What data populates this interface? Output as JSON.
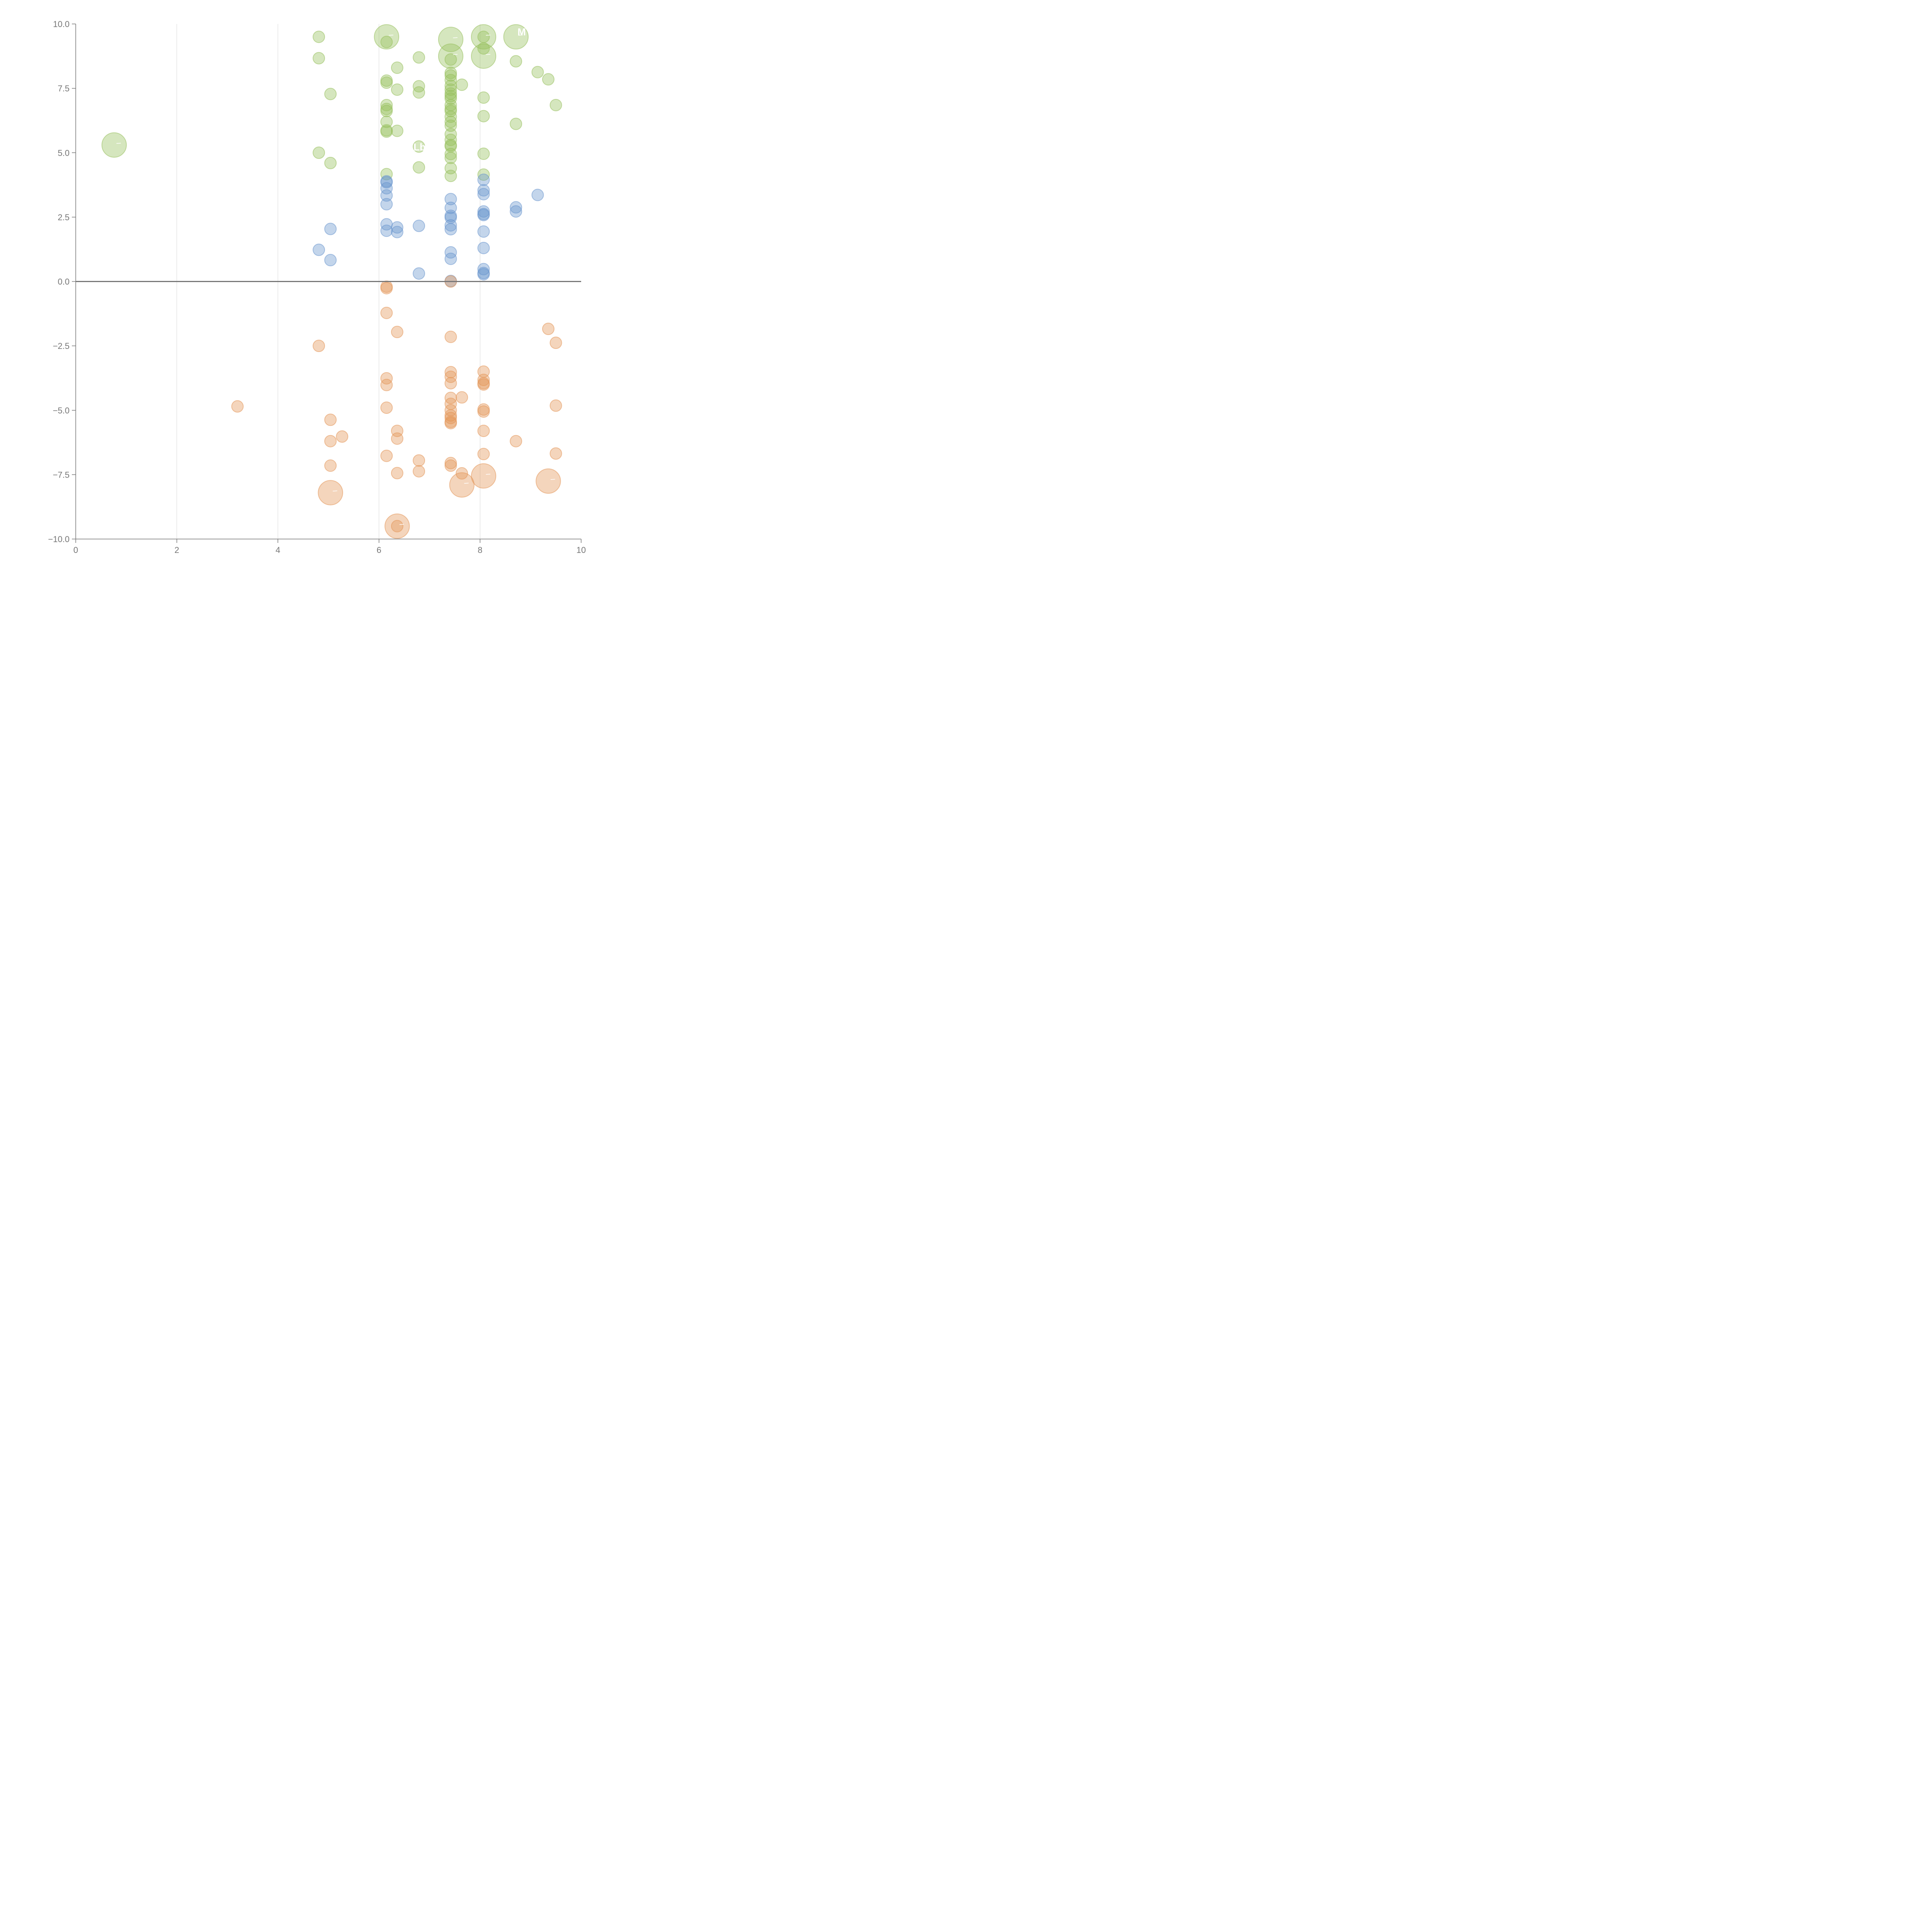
{
  "colors": {
    "positive_high": "#97c05c",
    "positive_low": "#6a95cd",
    "negative": "#e39658",
    "axis": "#777777",
    "grid": "#d9d9d9",
    "label": "#ffffff"
  },
  "chart_data": {
    "type": "scatter",
    "title": "",
    "xlabel": "",
    "ylabel": "",
    "xlim": [
      0,
      10
    ],
    "ylim": [
      -10,
      10
    ],
    "xticks": [
      "0",
      "2",
      "4",
      "6",
      "8",
      "10"
    ],
    "yticks": [
      "10.0",
      "7.5",
      "5.0",
      "2.5",
      "0.0",
      "−2.5",
      "−5.0",
      "−7.5",
      "−10.0"
    ],
    "grid": "vertical",
    "reference_line": 0,
    "series": [
      {
        "name": "green",
        "color": "#97c05c",
        "points": [
          [
            4.81,
            9.5
          ],
          [
            4.81,
            8.67
          ],
          [
            5.04,
            7.28
          ],
          [
            4.81,
            5.0
          ],
          [
            5.04,
            4.6
          ],
          [
            6.15,
            9.3
          ],
          [
            6.15,
            7.8
          ],
          [
            6.15,
            7.72
          ],
          [
            6.15,
            6.85
          ],
          [
            6.15,
            6.7
          ],
          [
            6.15,
            6.62
          ],
          [
            6.15,
            6.2
          ],
          [
            6.15,
            5.87
          ],
          [
            6.15,
            5.82
          ],
          [
            6.15,
            4.17
          ],
          [
            6.36,
            8.3
          ],
          [
            6.36,
            7.45
          ],
          [
            6.36,
            5.85
          ],
          [
            6.79,
            8.7
          ],
          [
            6.79,
            7.58
          ],
          [
            6.79,
            7.34
          ],
          [
            6.79,
            5.24
          ],
          [
            6.79,
            4.43
          ],
          [
            7.42,
            8.62
          ],
          [
            7.42,
            8.1
          ],
          [
            7.42,
            8.0
          ],
          [
            7.42,
            7.82
          ],
          [
            7.42,
            7.6
          ],
          [
            7.42,
            7.45
          ],
          [
            7.42,
            7.3
          ],
          [
            7.42,
            7.2
          ],
          [
            7.42,
            7.1
          ],
          [
            7.42,
            6.85
          ],
          [
            7.42,
            6.7
          ],
          [
            7.42,
            6.62
          ],
          [
            7.42,
            6.4
          ],
          [
            7.42,
            6.2
          ],
          [
            7.42,
            6.05
          ],
          [
            7.42,
            5.72
          ],
          [
            7.42,
            5.5
          ],
          [
            7.42,
            5.3
          ],
          [
            7.42,
            5.25
          ],
          [
            7.42,
            4.95
          ],
          [
            7.42,
            4.8
          ],
          [
            7.42,
            4.4
          ],
          [
            7.42,
            4.1
          ],
          [
            7.64,
            7.64
          ],
          [
            8.07,
            9.5
          ],
          [
            8.07,
            9.05
          ],
          [
            8.07,
            7.14
          ],
          [
            8.07,
            6.42
          ],
          [
            8.07,
            4.96
          ],
          [
            8.07,
            4.15
          ],
          [
            8.71,
            8.55
          ],
          [
            8.71,
            6.12
          ],
          [
            9.14,
            8.13
          ],
          [
            9.35,
            7.85
          ],
          [
            9.5,
            6.85
          ]
        ]
      },
      {
        "name": "blue",
        "color": "#6a95cd",
        "points": [
          [
            4.81,
            1.23
          ],
          [
            5.04,
            2.04
          ],
          [
            5.04,
            0.83
          ],
          [
            6.15,
            3.89
          ],
          [
            6.15,
            3.85
          ],
          [
            6.15,
            3.62
          ],
          [
            6.15,
            3.34
          ],
          [
            6.15,
            3.0
          ],
          [
            6.15,
            2.22
          ],
          [
            6.15,
            1.97
          ],
          [
            6.36,
            2.1
          ],
          [
            6.36,
            1.92
          ],
          [
            6.79,
            2.16
          ],
          [
            6.79,
            0.31
          ],
          [
            7.42,
            3.2
          ],
          [
            7.42,
            2.86
          ],
          [
            7.42,
            2.55
          ],
          [
            7.42,
            2.48
          ],
          [
            7.42,
            2.18
          ],
          [
            7.42,
            2.03
          ],
          [
            7.42,
            1.13
          ],
          [
            7.42,
            0.88
          ],
          [
            7.42,
            0.02
          ],
          [
            8.07,
            3.95
          ],
          [
            8.07,
            3.54
          ],
          [
            8.07,
            3.39
          ],
          [
            8.07,
            2.72
          ],
          [
            8.07,
            2.62
          ],
          [
            8.07,
            2.58
          ],
          [
            8.07,
            1.94
          ],
          [
            8.07,
            1.3
          ],
          [
            8.07,
            0.48
          ],
          [
            8.07,
            0.33
          ],
          [
            8.07,
            0.28
          ],
          [
            8.71,
            2.88
          ],
          [
            8.71,
            2.72
          ],
          [
            9.14,
            3.36
          ]
        ]
      },
      {
        "name": "orange",
        "color": "#e39658",
        "points": [
          [
            3.2,
            -4.85
          ],
          [
            4.81,
            -2.5
          ],
          [
            5.04,
            -5.37
          ],
          [
            5.04,
            -6.2
          ],
          [
            5.04,
            -7.15
          ],
          [
            5.27,
            -6.02
          ],
          [
            6.15,
            -0.2
          ],
          [
            6.15,
            -0.26
          ],
          [
            6.15,
            -1.22
          ],
          [
            6.15,
            -3.76
          ],
          [
            6.15,
            -4.02
          ],
          [
            6.15,
            -4.9
          ],
          [
            6.15,
            -6.77
          ],
          [
            6.36,
            -1.96
          ],
          [
            6.36,
            -5.8
          ],
          [
            6.36,
            -6.1
          ],
          [
            6.36,
            -7.44
          ],
          [
            6.36,
            -9.5
          ],
          [
            6.79,
            -6.95
          ],
          [
            6.79,
            -7.37
          ],
          [
            7.42,
            0.0
          ],
          [
            7.42,
            -2.15
          ],
          [
            7.42,
            -3.52
          ],
          [
            7.42,
            -3.7
          ],
          [
            7.42,
            -3.95
          ],
          [
            7.42,
            -4.52
          ],
          [
            7.42,
            -4.75
          ],
          [
            7.42,
            -5.0
          ],
          [
            7.42,
            -5.2
          ],
          [
            7.42,
            -5.3
          ],
          [
            7.42,
            -5.45
          ],
          [
            7.42,
            -5.5
          ],
          [
            7.42,
            -7.05
          ],
          [
            7.42,
            -7.15
          ],
          [
            7.64,
            -4.5
          ],
          [
            7.64,
            -7.45
          ],
          [
            8.07,
            -3.5
          ],
          [
            8.07,
            -3.82
          ],
          [
            8.07,
            -3.95
          ],
          [
            8.07,
            -4.0
          ],
          [
            8.07,
            -4.97
          ],
          [
            8.07,
            -5.05
          ],
          [
            8.07,
            -5.8
          ],
          [
            8.07,
            -6.7
          ],
          [
            8.71,
            -6.2
          ],
          [
            9.35,
            -1.84
          ],
          [
            9.5,
            -2.38
          ],
          [
            9.5,
            -4.82
          ],
          [
            9.5,
            -6.68
          ]
        ]
      }
    ],
    "large_bubbles": [
      {
        "x": 0.76,
        "y": 5.3,
        "size": 2.2,
        "series": "green",
        "label": ""
      },
      {
        "x": 6.15,
        "y": 9.5,
        "size": 2.2,
        "series": "green",
        "label": ""
      },
      {
        "x": 7.42,
        "y": 9.4,
        "size": 2.2,
        "series": "green",
        "label": ""
      },
      {
        "x": 7.42,
        "y": 8.75,
        "size": 2.2,
        "series": "green",
        "label": ""
      },
      {
        "x": 8.07,
        "y": 9.5,
        "size": 2.2,
        "series": "green",
        "label": ""
      },
      {
        "x": 8.07,
        "y": 8.75,
        "size": 2.2,
        "series": "green",
        "label": ""
      },
      {
        "x": 8.71,
        "y": 9.5,
        "size": 2.2,
        "series": "green",
        "label": "M"
      },
      {
        "x": 5.04,
        "y": -8.2,
        "size": 2.2,
        "series": "orange",
        "label": ""
      },
      {
        "x": 6.36,
        "y": -9.5,
        "size": 2.2,
        "series": "orange",
        "label": ""
      },
      {
        "x": 7.64,
        "y": -7.9,
        "size": 2.2,
        "series": "orange",
        "label": ""
      },
      {
        "x": 8.07,
        "y": -7.55,
        "size": 2.2,
        "series": "orange",
        "label": ""
      },
      {
        "x": 9.35,
        "y": -7.75,
        "size": 2.2,
        "series": "orange",
        "label": ""
      }
    ],
    "annotations": [
      {
        "text": "Lb",
        "x": 6.79,
        "y": 5.24
      }
    ]
  }
}
